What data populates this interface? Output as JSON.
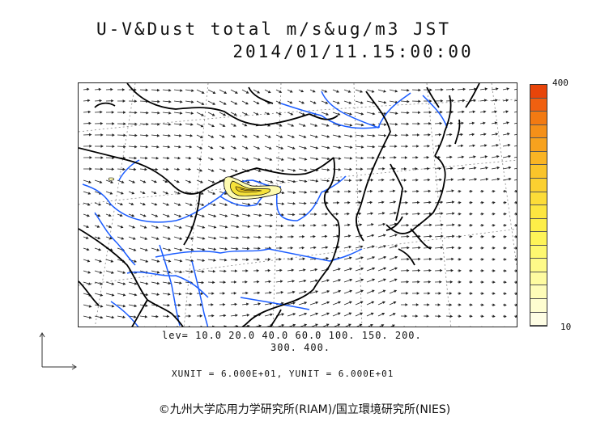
{
  "title": {
    "line1": "U-V&Dust total m/s&ug/m3 JST",
    "line2": "2014/01/11.15:00:00"
  },
  "colorbar": {
    "max_label": "400",
    "min_label": "10",
    "colors": [
      "#e8450a",
      "#f06010",
      "#f27a12",
      "#f59018",
      "#f7a21e",
      "#f9b424",
      "#fac42a",
      "#fbd030",
      "#fcdc38",
      "#fde640",
      "#fdee48",
      "#fef458",
      "#fef870",
      "#fefa88",
      "#fefba0",
      "#fefcb8",
      "#fefdd0",
      "#fefde4"
    ]
  },
  "contour_levels": {
    "line1": "lev= 10.0 20.0 40.0 60.0 100. 150. 200.",
    "line2": "300. 400."
  },
  "units": "XUNIT = 6.000E+01, YUNIT = 6.000E+01",
  "copyright": "©九州大学応用力学研究所(RIAM)/国立環境研究所(NIES)",
  "colors": {
    "coast": "#000000",
    "rivers": "#1a5cff",
    "dust_high": "#f0e040",
    "dust_low": "#fefbb0"
  },
  "icons": {
    "reference_vector": "reference-vector-icon"
  }
}
